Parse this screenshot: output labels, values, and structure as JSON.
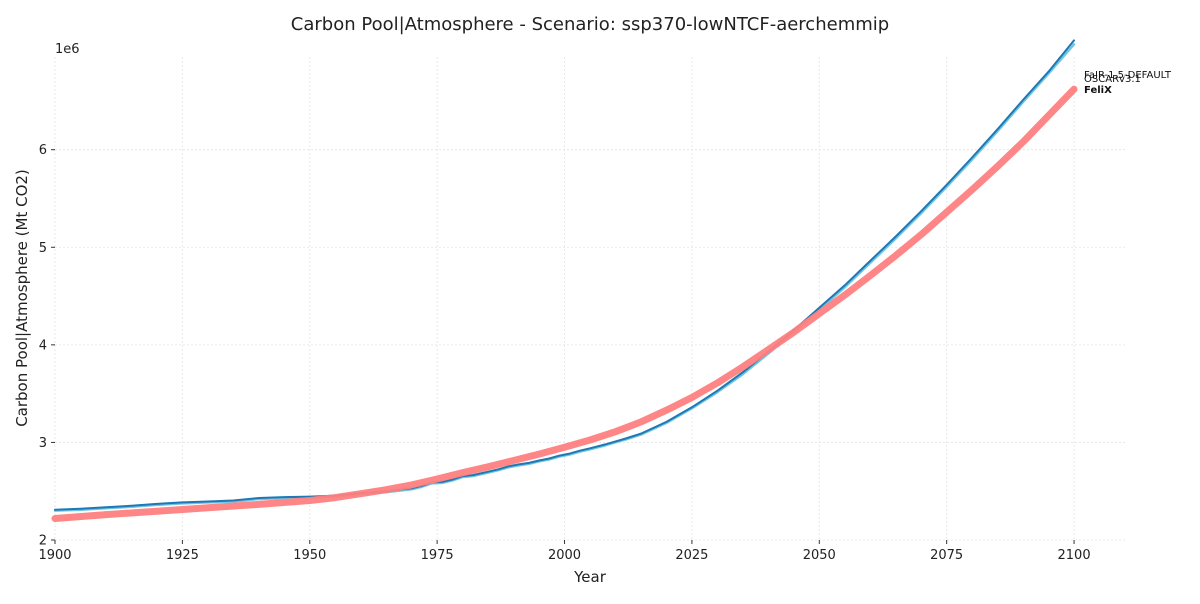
{
  "chart_data": {
    "type": "line",
    "title": "Carbon Pool|Atmosphere - Scenario: ssp370-lowNTCF-aerchemmip",
    "xlabel": "Year",
    "ylabel": "Carbon Pool|Atmosphere (Mt CO2)",
    "y_offset_label": "1e6",
    "xlim": [
      1900,
      2110
    ],
    "ylim": [
      2000000,
      6950000
    ],
    "x_ticks": [
      1900,
      1925,
      1950,
      1975,
      2000,
      2025,
      2050,
      2075,
      2100
    ],
    "x_tick_labels": [
      "1900",
      "1925",
      "1950",
      "1975",
      "2000",
      "2025",
      "2050",
      "2075",
      "2100"
    ],
    "y_ticks": [
      2000000,
      3000000,
      4000000,
      5000000,
      6000000
    ],
    "y_tick_labels": [
      "2",
      "3",
      "4",
      "5",
      "6"
    ],
    "grid": true,
    "legend": "end-of-line labels",
    "series": [
      {
        "name": "FaIR-1.5-DEFAULT",
        "color": "#1f77b4",
        "label_bold": false,
        "x": [
          1900,
          1905,
          1910,
          1915,
          1920,
          1925,
          1930,
          1935,
          1940,
          1945,
          1950,
          1955,
          1960,
          1965,
          1970,
          1972,
          1974,
          1976,
          1978,
          1980,
          1982,
          1985,
          1987,
          1989,
          1991,
          1993,
          1995,
          1997,
          1999,
          2001,
          2003,
          2005,
          2008,
          2010,
          2012,
          2015,
          2020,
          2025,
          2030,
          2035,
          2040,
          2045,
          2050,
          2055,
          2060,
          2065,
          2070,
          2075,
          2080,
          2085,
          2090,
          2095,
          2100
        ],
        "values": [
          2310000,
          2320000,
          2335000,
          2350000,
          2370000,
          2385000,
          2395000,
          2405000,
          2430000,
          2440000,
          2445000,
          2455000,
          2480000,
          2500000,
          2530000,
          2555000,
          2590000,
          2595000,
          2620000,
          2655000,
          2665000,
          2700000,
          2725000,
          2755000,
          2775000,
          2790000,
          2815000,
          2835000,
          2865000,
          2885000,
          2915000,
          2940000,
          2980000,
          3010000,
          3040000,
          3090000,
          3210000,
          3360000,
          3530000,
          3720000,
          3930000,
          4150000,
          4380000,
          4610000,
          4860000,
          5110000,
          5370000,
          5640000,
          5920000,
          6210000,
          6510000,
          6800000,
          7120000
        ]
      },
      {
        "name": "OSCARv3.1",
        "color": "#6ec6e0",
        "label_bold": false,
        "x": [
          1900,
          1905,
          1910,
          1915,
          1920,
          1925,
          1930,
          1935,
          1940,
          1945,
          1950,
          1955,
          1960,
          1965,
          1970,
          1972,
          1974,
          1976,
          1978,
          1980,
          1982,
          1985,
          1987,
          1989,
          1991,
          1993,
          1995,
          1997,
          1999,
          2001,
          2003,
          2005,
          2008,
          2010,
          2012,
          2015,
          2020,
          2025,
          2030,
          2035,
          2040,
          2045,
          2050,
          2055,
          2060,
          2065,
          2070,
          2075,
          2080,
          2085,
          2090,
          2095,
          2100
        ],
        "values": [
          2300000,
          2310000,
          2325000,
          2340000,
          2360000,
          2375000,
          2385000,
          2395000,
          2420000,
          2430000,
          2435000,
          2445000,
          2470000,
          2490000,
          2520000,
          2545000,
          2580000,
          2585000,
          2610000,
          2645000,
          2655000,
          2690000,
          2715000,
          2745000,
          2765000,
          2780000,
          2805000,
          2825000,
          2855000,
          2875000,
          2905000,
          2930000,
          2970000,
          3000000,
          3030000,
          3080000,
          3200000,
          3350000,
          3515000,
          3700000,
          3910000,
          4130000,
          4360000,
          4590000,
          4840000,
          5090000,
          5350000,
          5620000,
          5900000,
          6190000,
          6490000,
          6780000,
          7080000
        ]
      },
      {
        "name": "FeliX",
        "color": "#ff7f7f",
        "label_bold": true,
        "x": [
          1900,
          1910,
          1920,
          1930,
          1940,
          1950,
          1955,
          1960,
          1965,
          1970,
          1975,
          1980,
          1985,
          1990,
          1995,
          2000,
          2005,
          2010,
          2015,
          2020,
          2025,
          2030,
          2035,
          2040,
          2045,
          2050,
          2055,
          2060,
          2065,
          2070,
          2075,
          2080,
          2085,
          2090,
          2095,
          2100
        ],
        "values": [
          2220000,
          2260000,
          2295000,
          2330000,
          2365000,
          2405000,
          2435000,
          2475000,
          2515000,
          2565000,
          2625000,
          2690000,
          2750000,
          2815000,
          2880000,
          2950000,
          3025000,
          3110000,
          3210000,
          3330000,
          3460000,
          3610000,
          3775000,
          3950000,
          4130000,
          4320000,
          4510000,
          4710000,
          4915000,
          5130000,
          5360000,
          5590000,
          5830000,
          6080000,
          6350000,
          6620000
        ]
      }
    ]
  }
}
